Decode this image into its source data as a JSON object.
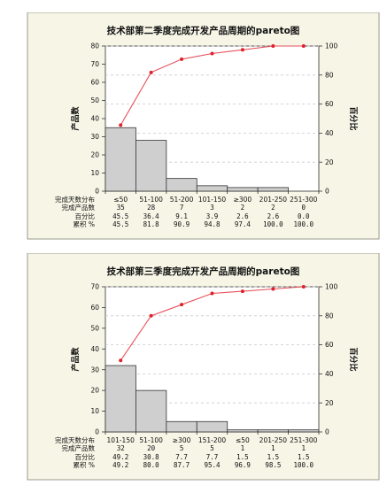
{
  "chart_data": [
    {
      "type": "bar",
      "title": "技术部第二季度完成开发产品周期的pareto图",
      "ylabel": "产品数",
      "y2label": "百分比",
      "ylim": [
        0,
        80
      ],
      "y2lim": [
        0,
        100
      ],
      "yticks": [
        "0",
        "10",
        "20",
        "30",
        "40",
        "50",
        "60",
        "70",
        "80"
      ],
      "y2ticks": [
        "0",
        "20",
        "40",
        "60",
        "80",
        "100"
      ],
      "row_labels": [
        "完成天数分布",
        "完成产品数",
        "百分比",
        "累积 %"
      ],
      "categories": [
        "≤50",
        "51-100",
        "51-200",
        "101-150",
        "≥300",
        "201-250",
        "251-300"
      ],
      "counts": [
        "35",
        "28",
        "7",
        "3",
        "2",
        "2",
        "0"
      ],
      "percents": [
        "45.5",
        "36.4",
        "9.1",
        "3.9",
        "2.6",
        "2.6",
        "0.0"
      ],
      "cumulative": [
        "45.5",
        "81.8",
        "90.9",
        "94.8",
        "97.4",
        "100.0",
        "100.0"
      ],
      "values": [
        35,
        28,
        7,
        3,
        2,
        2,
        0
      ],
      "cum_values": [
        45.5,
        81.8,
        90.9,
        94.8,
        97.4,
        100.0,
        100.0
      ]
    },
    {
      "type": "bar",
      "title": "技术部第三季度完成开发产品周期的pareto图",
      "ylabel": "产品数",
      "y2label": "百分比",
      "ylim": [
        0,
        70
      ],
      "y2lim": [
        0,
        100
      ],
      "yticks": [
        "0",
        "10",
        "20",
        "30",
        "40",
        "50",
        "60",
        "70"
      ],
      "y2ticks": [
        "0",
        "20",
        "40",
        "60",
        "80",
        "100"
      ],
      "row_labels": [
        "完成天数分布",
        "完成产品数",
        "百分比",
        "累积 %"
      ],
      "categories": [
        "101-150",
        "51-100",
        "≥300",
        "151-200",
        "≤50",
        "201-250",
        "251-300"
      ],
      "counts": [
        "32",
        "20",
        "5",
        "5",
        "1",
        "1",
        "1"
      ],
      "percents": [
        "49.2",
        "30.8",
        "7.7",
        "7.7",
        "1.5",
        "1.5",
        "1.5"
      ],
      "cumulative": [
        "49.2",
        "80.0",
        "87.7",
        "95.4",
        "96.9",
        "98.5",
        "100.0"
      ],
      "values": [
        32,
        20,
        5,
        5,
        1,
        1,
        1
      ],
      "cum_values": [
        49.2,
        80.0,
        87.7,
        95.4,
        96.9,
        98.5,
        100.0
      ]
    }
  ]
}
